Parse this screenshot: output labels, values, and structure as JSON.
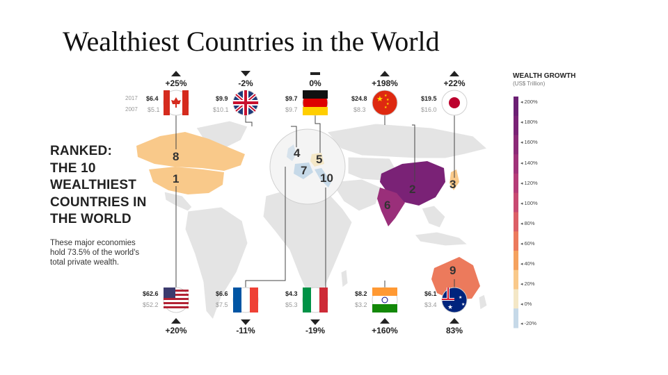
{
  "title": "Wealthiest Countries in the World",
  "ranked_lines": [
    "RANKED:",
    "THE 10",
    "WEALTHIEST",
    "COUNTRIES IN",
    "THE WORLD"
  ],
  "note": "These major economies hold 73.5% of the world's total private wealth.",
  "year_labels": {
    "y2017": "2017",
    "y2007": "2007"
  },
  "legend": {
    "title": "WEALTH GROWTH",
    "subtitle": "(US$ Trillion)",
    "labels": [
      "200%",
      "180%",
      "160%",
      "140%",
      "120%",
      "100%",
      "80%",
      "60%",
      "40%",
      "20%",
      "0%",
      "-20%"
    ],
    "colors": [
      "#6b1f73",
      "#7a2276",
      "#8c2a78",
      "#a0327a",
      "#b53c78",
      "#c84a72",
      "#dc5f66",
      "#ec7a5c",
      "#f5a25e",
      "#f9c98a",
      "#f4e7c6",
      "#c6d9e8"
    ]
  },
  "chart_data": {
    "type": "table",
    "title": "Wealthiest Countries in the World",
    "units": "US$ Trillion",
    "columns": [
      "rank",
      "country",
      "wealth_2017",
      "wealth_2007",
      "change"
    ],
    "countries": [
      {
        "rank": "8",
        "country": "Canada",
        "w2017": "$6.4",
        "w2007": "$5.1",
        "change": "+25%",
        "dir": "up",
        "color": "#f9c98a"
      },
      {
        "rank": "4",
        "country": "United Kingdom",
        "w2017": "$9.9",
        "w2007": "$10.1",
        "change": "-2%",
        "dir": "down",
        "color": "#d6e2ec"
      },
      {
        "rank": "5",
        "country": "Germany",
        "w2017": "$9.7",
        "w2007": "$9.7",
        "change": "0%",
        "dir": "flat",
        "color": "#f4e7c6"
      },
      {
        "rank": "2",
        "country": "China",
        "w2017": "$24.8",
        "w2007": "$8.3",
        "change": "+198%",
        "dir": "up",
        "color": "#7a2276"
      },
      {
        "rank": "3",
        "country": "Japan",
        "w2017": "$19.5",
        "w2007": "$16.0",
        "change": "+22%",
        "dir": "up",
        "color": "#f9c98a"
      },
      {
        "rank": "1",
        "country": "United States",
        "w2017": "$62.6",
        "w2007": "$52.2",
        "change": "+20%",
        "dir": "up",
        "color": "#f9c98a"
      },
      {
        "rank": "7",
        "country": "France",
        "w2017": "$6.6",
        "w2007": "$7.5",
        "change": "-11%",
        "dir": "down",
        "color": "#c6d9e8"
      },
      {
        "rank": "10",
        "country": "Italy",
        "w2017": "$4.3",
        "w2007": "$5.3",
        "change": "-19%",
        "dir": "down",
        "color": "#c6d9e8"
      },
      {
        "rank": "6",
        "country": "India",
        "w2017": "$8.2",
        "w2007": "$3.2",
        "change": "+160%",
        "dir": "up",
        "color": "#9a2f7a"
      },
      {
        "rank": "9",
        "country": "Australia",
        "w2017": "$6.1",
        "w2007": "$3.4",
        "change": "83%",
        "dir": "up",
        "color": "#ec7a5c"
      }
    ]
  }
}
